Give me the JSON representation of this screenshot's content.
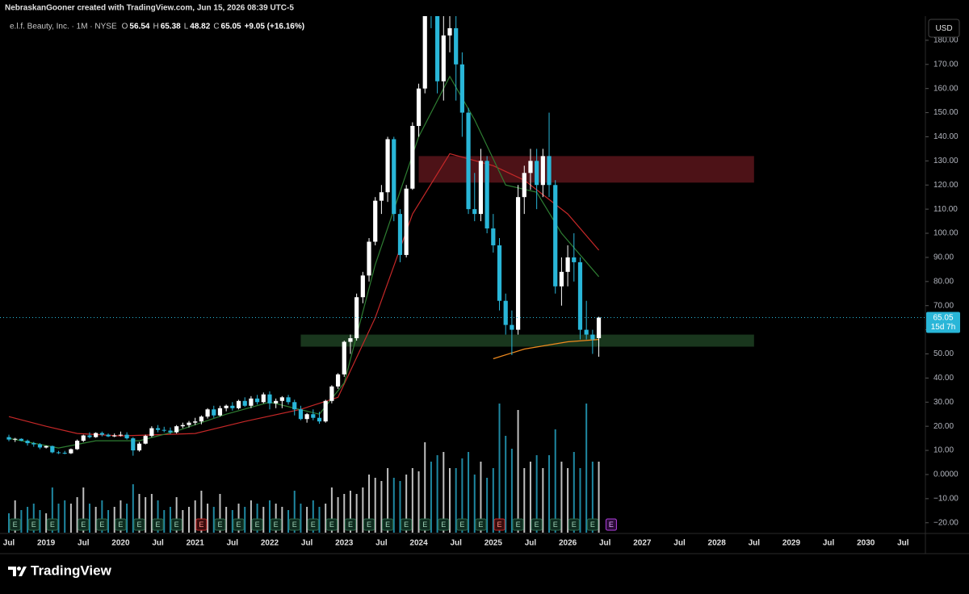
{
  "header": {
    "credit": "NebraskanGooner created with TradingView.com, Jun 15, 2026 08:39 UTC-5",
    "brand": "TradingView"
  },
  "chart_data": {
    "type": "candlestick",
    "title": "e.l.f. Beauty, Inc. · 1M · NYSE",
    "legend_labels": [
      "O",
      "H",
      "L",
      "C"
    ],
    "change": "+9.05 (+16.16%)",
    "currency": "USD",
    "countdown": "15d 7h",
    "start": "2018-07",
    "up_color": "#ffffff",
    "down_color": "#29b6d8",
    "candles": {
      "open": [
        15.5,
        14.5,
        14.8,
        14,
        13,
        12.5,
        11.2,
        11.8,
        9.2,
        9,
        8.8,
        10.5,
        14,
        16.2,
        15.5,
        17.2,
        16.5,
        15.8,
        16.2,
        16.5,
        15,
        10,
        12.8,
        16,
        19.2,
        18.5,
        18.2,
        17.5,
        20,
        20.5,
        21.5,
        22,
        24,
        27,
        24.5,
        27.5,
        28.5,
        27.5,
        30.5,
        28.5,
        31.5,
        30,
        33.2,
        29.5,
        30.5,
        32,
        30,
        27,
        23,
        25,
        23.5,
        22,
        30.5,
        36.5,
        41.5,
        55,
        56.5,
        73.5,
        82.5,
        96.5,
        113.5,
        117,
        139,
        108,
        91,
        118.5,
        144.5,
        160,
        200,
        196,
        163,
        182,
        185,
        170,
        150,
        110,
        108,
        130,
        102,
        95,
        72,
        62,
        60,
        115,
        125,
        130,
        120,
        132,
        120,
        78,
        84,
        90,
        88,
        60,
        58,
        56.54
      ],
      "high": [
        16.5,
        15.2,
        15,
        14.5,
        13.5,
        13,
        12,
        12,
        9.8,
        9.8,
        10.8,
        14.5,
        16.5,
        17.5,
        17.5,
        17.8,
        17,
        17,
        17.8,
        17.5,
        15.5,
        13.5,
        16.5,
        20,
        20.5,
        19.8,
        19.5,
        20.5,
        21.5,
        22.2,
        23.5,
        24.5,
        27.5,
        28.5,
        28.5,
        29,
        30,
        31,
        32,
        32.5,
        33,
        34,
        34.5,
        31.5,
        32.5,
        33,
        31,
        28.5,
        25.5,
        27,
        26,
        31,
        37,
        42,
        55.5,
        58,
        75,
        84,
        98,
        115,
        120,
        140,
        140,
        110,
        120,
        146,
        162,
        205,
        210,
        200,
        190,
        205,
        190,
        175,
        152,
        125,
        135,
        132,
        108,
        98,
        75,
        68,
        120,
        128,
        135,
        135,
        135,
        150,
        122,
        90,
        95,
        100,
        90,
        72,
        60,
        65.38
      ],
      "low": [
        13.8,
        13.5,
        13.8,
        12,
        11.5,
        10.5,
        10.8,
        8.8,
        8.5,
        8.4,
        8.5,
        10.2,
        13.5,
        15,
        15.2,
        15.8,
        15.5,
        15.5,
        15.8,
        14.5,
        7.8,
        9.5,
        12.5,
        15.5,
        17.5,
        17.5,
        16.8,
        17,
        19.2,
        19.5,
        20.5,
        20.8,
        23.2,
        23.5,
        24,
        26.2,
        26.5,
        27,
        28,
        27.5,
        29,
        29.5,
        27,
        27.5,
        27.5,
        29,
        24.5,
        22.5,
        21.5,
        22.5,
        21,
        21.5,
        29.5,
        35.5,
        40.5,
        50,
        55.5,
        71,
        80,
        95,
        108,
        113,
        105,
        88,
        90,
        118,
        140,
        158,
        185,
        158,
        155,
        175,
        155,
        140,
        108,
        105,
        105,
        100,
        92,
        68,
        58,
        49.5,
        58,
        108,
        118,
        110,
        115,
        115,
        75,
        70,
        78,
        80,
        56,
        56,
        50,
        48.82
      ],
      "close": [
        14.5,
        14.8,
        14,
        13,
        12.5,
        11.2,
        11.8,
        9.2,
        9,
        8.8,
        10.5,
        14,
        16.2,
        15.5,
        17.2,
        16.5,
        15.8,
        16.2,
        16.5,
        15,
        10,
        12.8,
        16,
        19.2,
        18.5,
        18.2,
        17.5,
        20,
        20.5,
        21.5,
        22,
        24,
        27,
        24.5,
        27.5,
        28.5,
        27.5,
        30.5,
        28.5,
        31.5,
        30,
        33.2,
        29.5,
        30.5,
        32,
        30,
        27,
        23,
        25,
        23.5,
        22,
        30.5,
        36.5,
        41.5,
        55,
        56.5,
        73.5,
        82.5,
        96.5,
        113.5,
        117,
        139,
        108,
        91,
        118.5,
        144.5,
        160,
        200,
        196,
        163,
        182,
        185,
        170,
        150,
        110,
        108,
        130,
        102,
        95,
        72,
        62,
        60,
        115,
        125,
        130,
        120,
        132,
        120,
        78,
        84,
        90,
        88,
        60,
        58,
        56,
        65.05
      ]
    },
    "volume": [
      6,
      10,
      7,
      8,
      9,
      7,
      6,
      14,
      9,
      10,
      9,
      11,
      14,
      9,
      8,
      10,
      7,
      8,
      10,
      9,
      15,
      12,
      11,
      12,
      10,
      7,
      8,
      11,
      7,
      8,
      10,
      13,
      9,
      8,
      12,
      8,
      7,
      9,
      8,
      10,
      9,
      8,
      10,
      9,
      8,
      7,
      13,
      9,
      8,
      10,
      8,
      9,
      14,
      11,
      12,
      13,
      12,
      14,
      18,
      17,
      16,
      20,
      17,
      16,
      18,
      20,
      19,
      28,
      22,
      24,
      25,
      20,
      20,
      23,
      25,
      18,
      22,
      17,
      20,
      40,
      30,
      26,
      38,
      20,
      22,
      24,
      20,
      24,
      32,
      22,
      20,
      25,
      20,
      40,
      22,
      22
    ],
    "vlim": [
      0,
      40
    ],
    "lines": [
      {
        "color": "#c62828",
        "x": [
          "2018-07",
          "2019-01",
          "2019-06",
          "2020-01",
          "2021-01",
          "2021-09",
          "2022-06",
          "2022-12",
          "2023-06",
          "2023-12",
          "2024-06",
          "2025-01",
          "2025-06",
          "2026-01",
          "2026-06"
        ],
        "values": [
          24,
          20,
          17,
          16,
          17,
          22,
          27,
          32,
          65,
          108,
          133,
          128,
          122,
          108,
          93
        ]
      },
      {
        "color": "#2e7d32",
        "x": [
          "2018-07",
          "2019-03",
          "2019-09",
          "2020-04",
          "2020-10",
          "2021-06",
          "2022-01",
          "2022-09",
          "2023-01",
          "2023-06",
          "2024-01",
          "2024-06",
          "2024-10",
          "2025-03",
          "2025-08",
          "2025-12",
          "2026-06"
        ],
        "values": [
          15,
          11,
          14,
          14,
          18,
          25,
          30,
          25,
          38,
          87,
          140,
          165,
          147,
          120,
          117,
          100,
          82
        ]
      },
      {
        "color": "#ef8a1f",
        "x": [
          "2025-01",
          "2025-06",
          "2026-01",
          "2026-06"
        ],
        "values": [
          48,
          52,
          55,
          56
        ]
      }
    ],
    "zones": [
      {
        "from": "2024-01",
        "to": "2028-07",
        "low": 121,
        "high": 132,
        "color": "#5a151b"
      },
      {
        "from": "2022-06",
        "to": "2028-07",
        "low": 53,
        "high": 58,
        "color": "#1d3f22"
      }
    ],
    "earnings_label": "E",
    "earnings": [
      "2018-08",
      "2018-11",
      "2019-02",
      "2019-07",
      "2019-10",
      "2020-01",
      "2020-04",
      "2020-07",
      "2020-10",
      "2021-05",
      "2021-08",
      "2021-11",
      "2022-02",
      "2022-05",
      "2022-08",
      "2022-11",
      "2023-02",
      "2023-05",
      "2023-08",
      "2023-11",
      "2024-02",
      "2024-05",
      "2024-08",
      "2024-11",
      "2025-05",
      "2025-08",
      "2025-11",
      "2026-02",
      "2026-05"
    ],
    "earnings_missed": [
      "2021-02",
      "2025-02"
    ],
    "earnings_upcoming": [
      "2026-08"
    ],
    "ylim": [
      -24.1,
      190
    ],
    "yticks": [
      {
        "value": 180,
        "label": "180.00"
      },
      {
        "value": 170,
        "label": "170.00"
      },
      {
        "value": 160,
        "label": "160.00"
      },
      {
        "value": 150,
        "label": "150.00"
      },
      {
        "value": 140,
        "label": "140.00"
      },
      {
        "value": 130,
        "label": "130.00"
      },
      {
        "value": 120,
        "label": "120.00"
      },
      {
        "value": 110,
        "label": "110.00"
      },
      {
        "value": 100,
        "label": "100.00"
      },
      {
        "value": 90,
        "label": "90.00"
      },
      {
        "value": 80,
        "label": "80.00"
      },
      {
        "value": 70,
        "label": "70.00"
      },
      {
        "value": 60,
        "label": "60.00"
      },
      {
        "value": 50,
        "label": "50.00"
      },
      {
        "value": 40,
        "label": "40.00"
      },
      {
        "value": 30,
        "label": "30.00"
      },
      {
        "value": 20,
        "label": "20.00"
      },
      {
        "value": 10,
        "label": "10.00"
      },
      {
        "value": 0,
        "label": "0.0000"
      },
      {
        "value": -10,
        "label": "−10.00"
      },
      {
        "value": -20,
        "label": "−20.00"
      }
    ],
    "xticks": [
      {
        "value": "2018-07",
        "label": "Jul"
      },
      {
        "value": "2019-01",
        "label": "2019"
      },
      {
        "value": "2019-07",
        "label": "Jul"
      },
      {
        "value": "2020-01",
        "label": "2020"
      },
      {
        "value": "2020-07",
        "label": "Jul"
      },
      {
        "value": "2021-01",
        "label": "2021"
      },
      {
        "value": "2021-07",
        "label": "Jul"
      },
      {
        "value": "2022-01",
        "label": "2022"
      },
      {
        "value": "2022-07",
        "label": "Jul"
      },
      {
        "value": "2023-01",
        "label": "2023"
      },
      {
        "value": "2023-07",
        "label": "Jul"
      },
      {
        "value": "2024-01",
        "label": "2024"
      },
      {
        "value": "2024-07",
        "label": "Jul"
      },
      {
        "value": "2025-01",
        "label": "2025"
      },
      {
        "value": "2025-07",
        "label": "Jul"
      },
      {
        "value": "2026-01",
        "label": "2026"
      },
      {
        "value": "2026-07",
        "label": "Jul"
      },
      {
        "value": "2027-01",
        "label": "2027"
      },
      {
        "value": "2027-07",
        "label": "Jul"
      },
      {
        "value": "2028-01",
        "label": "2028"
      },
      {
        "value": "2028-07",
        "label": "Jul"
      },
      {
        "value": "2029-01",
        "label": "2029"
      },
      {
        "value": "2029-07",
        "label": "Jul"
      },
      {
        "value": "2030-01",
        "label": "2030"
      },
      {
        "value": "2030-07",
        "label": "Jul"
      }
    ]
  }
}
